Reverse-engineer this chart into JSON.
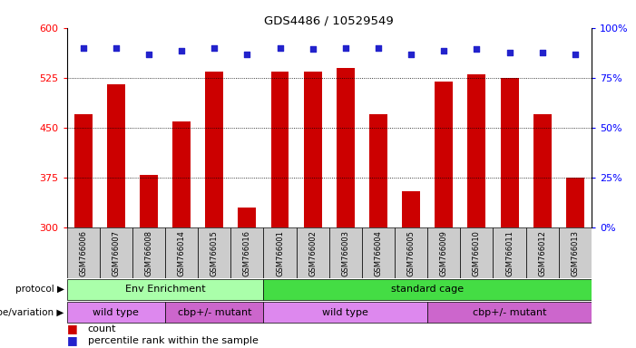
{
  "title": "GDS4486 / 10529549",
  "samples": [
    "GSM766006",
    "GSM766007",
    "GSM766008",
    "GSM766014",
    "GSM766015",
    "GSM766016",
    "GSM766001",
    "GSM766002",
    "GSM766003",
    "GSM766004",
    "GSM766005",
    "GSM766009",
    "GSM766010",
    "GSM766011",
    "GSM766012",
    "GSM766013"
  ],
  "counts": [
    470,
    515,
    380,
    460,
    535,
    330,
    535,
    535,
    540,
    470,
    355,
    520,
    530,
    525,
    470,
    375
  ],
  "percentile_y": [
    570,
    570,
    560,
    565,
    570,
    560,
    570,
    568,
    570,
    570,
    560,
    565,
    568,
    563,
    563,
    560
  ],
  "ylim_left": [
    300,
    600
  ],
  "ylim_right": [
    0,
    100
  ],
  "yticks_left": [
    300,
    375,
    450,
    525,
    600
  ],
  "yticks_right": [
    0,
    25,
    50,
    75,
    100
  ],
  "bar_color": "#cc0000",
  "dot_color": "#2222cc",
  "protocol_groups": [
    {
      "label": "Env Enrichment",
      "start": 0,
      "end": 6,
      "color": "#aaffaa"
    },
    {
      "label": "standard cage",
      "start": 6,
      "end": 16,
      "color": "#44dd44"
    }
  ],
  "genotype_groups": [
    {
      "label": "wild type",
      "start": 0,
      "end": 3,
      "color": "#dd88ee"
    },
    {
      "label": "cbp+/- mutant",
      "start": 3,
      "end": 6,
      "color": "#cc66cc"
    },
    {
      "label": "wild type",
      "start": 6,
      "end": 11,
      "color": "#dd88ee"
    },
    {
      "label": "cbp+/- mutant",
      "start": 11,
      "end": 16,
      "color": "#cc66cc"
    }
  ],
  "legend_count_label": "count",
  "legend_pct_label": "percentile rank within the sample",
  "dotted_lines": [
    375,
    450,
    525
  ],
  "bar_width": 0.55,
  "tick_bg_color": "#cccccc"
}
